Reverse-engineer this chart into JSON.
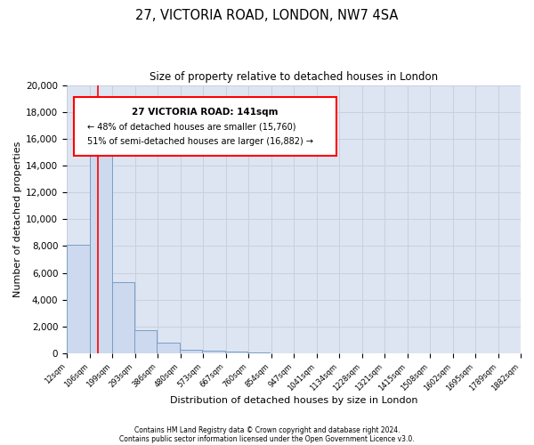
{
  "title1": "27, VICTORIA ROAD, LONDON, NW7 4SA",
  "title2": "Size of property relative to detached houses in London",
  "xlabel": "Distribution of detached houses by size in London",
  "ylabel": "Number of detached properties",
  "bar_values": [
    8100,
    16500,
    5300,
    1750,
    800,
    280,
    200,
    150,
    100
  ],
  "bin_edges": [
    12,
    106,
    199,
    293,
    386,
    480,
    573,
    667,
    760,
    854
  ],
  "tick_labels": [
    "12sqm",
    "106sqm",
    "199sqm",
    "293sqm",
    "386sqm",
    "480sqm",
    "573sqm",
    "667sqm",
    "760sqm",
    "854sqm",
    "947sqm",
    "1041sqm",
    "1134sqm",
    "1228sqm",
    "1321sqm",
    "1415sqm",
    "1508sqm",
    "1602sqm",
    "1695sqm",
    "1789sqm",
    "1882sqm"
  ],
  "bar_color": "#ccd9ee",
  "bar_edge_color": "#7a9ec8",
  "grid_color": "#c8d0de",
  "background_color": "#dde5f2",
  "fig_background": "#ffffff",
  "red_line_x": 141,
  "property_line": "27 VICTORIA ROAD: 141sqm",
  "annotation_line2": "← 48% of detached houses are smaller (15,760)",
  "annotation_line3": "51% of semi-detached houses are larger (16,882) →",
  "ylim": [
    0,
    20000
  ],
  "yticks": [
    0,
    2000,
    4000,
    6000,
    8000,
    10000,
    12000,
    14000,
    16000,
    18000,
    20000
  ],
  "footer1": "Contains HM Land Registry data © Crown copyright and database right 2024.",
  "footer2": "Contains public sector information licensed under the Open Government Licence v3.0."
}
